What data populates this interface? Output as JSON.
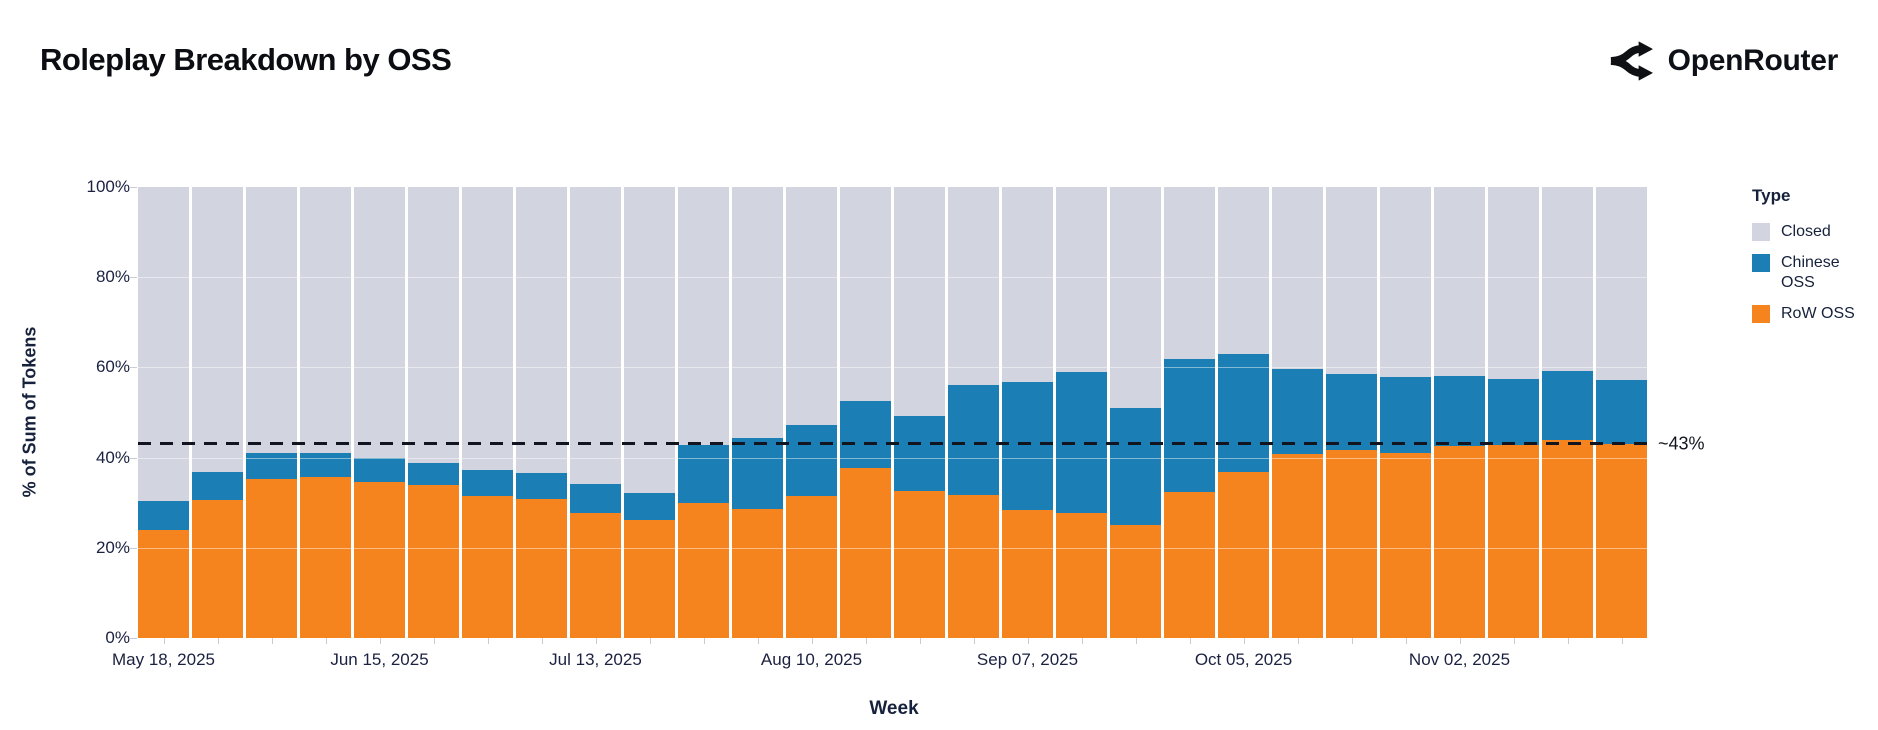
{
  "header": {
    "title": "Roleplay Breakdown by OSS",
    "brand": "OpenRouter"
  },
  "axes": {
    "y_title": "% of Sum of Tokens",
    "x_title": "Week",
    "y_tick_labels": [
      "0%",
      "20%",
      "40%",
      "60%",
      "80%",
      "100%"
    ],
    "y_tick_values": [
      0,
      20,
      40,
      60,
      80,
      100
    ],
    "x_tick_labels": [
      "May 18, 2025",
      "Jun 15, 2025",
      "Jul 13, 2025",
      "Aug 10, 2025",
      "Sep 07, 2025",
      "Oct 05, 2025",
      "Nov 02, 2025"
    ],
    "x_tick_indices": [
      0,
      4,
      8,
      12,
      16,
      20,
      24
    ]
  },
  "annotation": {
    "label": "~43%",
    "value": 43.1
  },
  "legend": {
    "title": "Type",
    "items": [
      {
        "label": "Closed",
        "color": "#d2d5e0"
      },
      {
        "label": "Chinese OSS",
        "color": "#1b7eb4"
      },
      {
        "label": "RoW OSS",
        "color": "#f5841e"
      }
    ]
  },
  "chart_data": {
    "type": "bar",
    "stacked": true,
    "normalized_to": 100,
    "title": "Roleplay Breakdown by OSS",
    "xlabel": "Week",
    "ylabel": "% of Sum of Tokens",
    "ylim": [
      0,
      100
    ],
    "legend_position": "right",
    "grid": false,
    "categories": [
      "May 18, 2025",
      "May 25, 2025",
      "Jun 01, 2025",
      "Jun 08, 2025",
      "Jun 15, 2025",
      "Jun 22, 2025",
      "Jun 29, 2025",
      "Jul 06, 2025",
      "Jul 13, 2025",
      "Jul 20, 2025",
      "Jul 27, 2025",
      "Aug 03, 2025",
      "Aug 10, 2025",
      "Aug 17, 2025",
      "Aug 24, 2025",
      "Aug 31, 2025",
      "Sep 07, 2025",
      "Sep 14, 2025",
      "Sep 21, 2025",
      "Sep 28, 2025",
      "Oct 05, 2025",
      "Oct 12, 2025",
      "Oct 19, 2025",
      "Oct 26, 2025",
      "Nov 02, 2025",
      "Nov 09, 2025",
      "Nov 16, 2025",
      "Nov 23, 2025"
    ],
    "series": [
      {
        "name": "RoW OSS",
        "color": "#f5841e",
        "values": [
          23.9,
          30.6,
          35.3,
          35.6,
          34.7,
          34.0,
          31.4,
          30.8,
          27.7,
          26.2,
          29.9,
          28.6,
          31.4,
          37.8,
          32.5,
          31.8,
          28.4,
          27.7,
          25.1,
          32.3,
          36.7,
          40.8,
          41.6,
          41.0,
          42.5,
          42.9,
          43.8,
          43.0
        ]
      },
      {
        "name": "Chinese OSS",
        "color": "#1b7eb4",
        "values": [
          6.4,
          6.2,
          5.7,
          5.5,
          5.2,
          4.8,
          5.8,
          5.8,
          6.5,
          5.9,
          12.9,
          15.8,
          15.8,
          14.7,
          16.7,
          24.4,
          28.3,
          31.3,
          25.8,
          29.5,
          26.2,
          18.9,
          17.0,
          16.9,
          15.7,
          14.6,
          15.4,
          14.3
        ]
      },
      {
        "name": "Closed",
        "color": "#d2d5e0",
        "values": [
          69.7,
          63.2,
          59.0,
          58.9,
          60.1,
          61.2,
          62.8,
          63.4,
          65.8,
          67.9,
          57.2,
          55.6,
          52.8,
          47.5,
          50.8,
          43.8,
          43.3,
          41.0,
          49.1,
          38.2,
          37.1,
          40.3,
          41.4,
          42.1,
          41.8,
          42.5,
          40.8,
          42.7
        ]
      }
    ],
    "reference_line": {
      "label": "~43%",
      "value": 43.1,
      "style": "dashed",
      "color": "#12151f"
    }
  }
}
